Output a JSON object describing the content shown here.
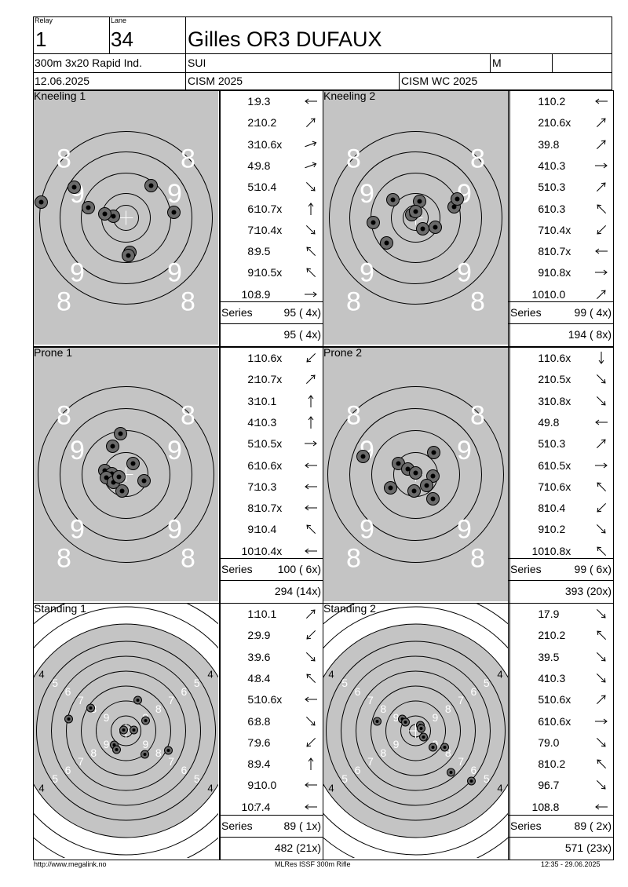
{
  "header": {
    "relay_label": "Relay",
    "relay": "1",
    "lane_label": "Lane",
    "lane": "34",
    "name": "Gilles OR3 DUFAUX",
    "event": "300m 3x20 Rapid Ind.",
    "nation": "SUI",
    "gender": "M",
    "date": "12.06.2025",
    "competition": "CISM 2025",
    "match": "CISM WC 2025"
  },
  "series": [
    {
      "title": "Kneeling 1",
      "target_type": "kneeling",
      "shots": [
        {
          "n": "1:",
          "v": "9.3",
          "dir": "W"
        },
        {
          "n": "2:",
          "v": "10.2",
          "dir": "NE"
        },
        {
          "n": "3:",
          "v": "10.6x",
          "dir": "ENE"
        },
        {
          "n": "4:",
          "v": "9.8",
          "dir": "ENE"
        },
        {
          "n": "5:",
          "v": "10.4",
          "dir": "SE"
        },
        {
          "n": "6:",
          "v": "10.7x",
          "dir": "N"
        },
        {
          "n": "7:",
          "v": "10.4x",
          "dir": "SE"
        },
        {
          "n": "8:",
          "v": "9.5",
          "dir": "NW"
        },
        {
          "n": "9:",
          "v": "10.5x",
          "dir": "NW"
        },
        {
          "n": "10:",
          "v": "8.9",
          "dir": "E"
        }
      ],
      "series_label": "Series",
      "series_total": "95 ( 4x)",
      "running_total": "95 ( 4x)",
      "hits": [
        [
          -108,
          -20
        ],
        [
          -66,
          -39
        ],
        [
          -16,
          -2
        ],
        [
          -48,
          -13
        ],
        [
          -27,
          -5
        ],
        [
          32,
          -41
        ],
        [
          61,
          -7
        ],
        [
          138,
          -2
        ],
        [
          5,
          44
        ],
        [
          3,
          48
        ]
      ]
    },
    {
      "title": "Kneeling 2",
      "target_type": "kneeling",
      "shots": [
        {
          "n": "1:",
          "v": "10.2",
          "dir": "W"
        },
        {
          "n": "2:",
          "v": "10.6x",
          "dir": "NE"
        },
        {
          "n": "3:",
          "v": "9.8",
          "dir": "NE"
        },
        {
          "n": "4:",
          "v": "10.3",
          "dir": "E"
        },
        {
          "n": "5:",
          "v": "10.3",
          "dir": "NE"
        },
        {
          "n": "6:",
          "v": "10.3",
          "dir": "NW"
        },
        {
          "n": "7:",
          "v": "10.4x",
          "dir": "SW"
        },
        {
          "n": "8:",
          "v": "10.7x",
          "dir": "W"
        },
        {
          "n": "9:",
          "v": "10.8x",
          "dir": "E"
        },
        {
          "n": "10:",
          "v": "10.0",
          "dir": "NE"
        }
      ],
      "series_label": "Series",
      "series_total": "99 ( 4x)",
      "running_total": "194 ( 8x)",
      "hits": [
        [
          -54,
          6
        ],
        [
          -29,
          -23
        ],
        [
          -5,
          -4
        ],
        [
          5,
          -21
        ],
        [
          25,
          12
        ],
        [
          -37,
          32
        ],
        [
          9,
          14
        ],
        [
          49,
          -14
        ],
        [
          53,
          -24
        ],
        [
          0,
          -8
        ]
      ]
    },
    {
      "title": "Prone 1",
      "target_type": "prone",
      "shots": [
        {
          "n": "1:",
          "v": "10.6x",
          "dir": "SW"
        },
        {
          "n": "2:",
          "v": "10.7x",
          "dir": "NE"
        },
        {
          "n": "3:",
          "v": "10.1",
          "dir": "N"
        },
        {
          "n": "4:",
          "v": "10.3",
          "dir": "N"
        },
        {
          "n": "5:",
          "v": "10.5x",
          "dir": "E"
        },
        {
          "n": "6:",
          "v": "10.6x",
          "dir": "W"
        },
        {
          "n": "7:",
          "v": "10.3",
          "dir": "W"
        },
        {
          "n": "8:",
          "v": "10.7x",
          "dir": "W"
        },
        {
          "n": "9:",
          "v": "10.4",
          "dir": "NW"
        },
        {
          "n": "10:",
          "v": "10.4x",
          "dir": "W"
        }
      ],
      "series_label": "Series",
      "series_total": "100 ( 6x)",
      "running_total": "294 (14x)",
      "hits": [
        [
          -27,
          -5
        ],
        [
          -17,
          -36
        ],
        [
          -7,
          -52
        ],
        [
          9,
          -14
        ],
        [
          23,
          8
        ],
        [
          -5,
          21
        ],
        [
          -18,
          -1
        ],
        [
          -25,
          4
        ],
        [
          -16,
          10
        ],
        [
          -9,
          3
        ]
      ]
    },
    {
      "title": "Prone 2",
      "target_type": "prone",
      "shots": [
        {
          "n": "1:",
          "v": "10.6x",
          "dir": "S"
        },
        {
          "n": "2:",
          "v": "10.5x",
          "dir": "SE"
        },
        {
          "n": "3:",
          "v": "10.8x",
          "dir": "SE"
        },
        {
          "n": "4:",
          "v": "9.8",
          "dir": "W"
        },
        {
          "n": "5:",
          "v": "10.3",
          "dir": "NE"
        },
        {
          "n": "6:",
          "v": "10.5x",
          "dir": "E"
        },
        {
          "n": "7:",
          "v": "10.6x",
          "dir": "NW"
        },
        {
          "n": "8:",
          "v": "10.4",
          "dir": "SW"
        },
        {
          "n": "9:",
          "v": "10.2",
          "dir": "SE"
        },
        {
          "n": "10:",
          "v": "10.8x",
          "dir": "NW"
        }
      ],
      "series_label": "Series",
      "series_total": "99 ( 6x)",
      "running_total": "393 (20x)",
      "hits": [
        [
          -67,
          -23
        ],
        [
          -22,
          -14
        ],
        [
          -10,
          -7
        ],
        [
          0,
          -2
        ],
        [
          23,
          -28
        ],
        [
          22,
          2
        ],
        [
          14,
          14
        ],
        [
          -2,
          21
        ],
        [
          -32,
          17
        ],
        [
          22,
          31
        ]
      ]
    },
    {
      "title": "Standing 1",
      "target_type": "standing",
      "shots": [
        {
          "n": "1:",
          "v": "10.1",
          "dir": "NE"
        },
        {
          "n": "2:",
          "v": "9.9",
          "dir": "SW"
        },
        {
          "n": "3:",
          "v": "9.6",
          "dir": "SE"
        },
        {
          "n": "4:",
          "v": "8.4",
          "dir": "NW"
        },
        {
          "n": "5:",
          "v": "10.6x",
          "dir": "W"
        },
        {
          "n": "6:",
          "v": "8.8",
          "dir": "SE"
        },
        {
          "n": "7:",
          "v": "9.6",
          "dir": "SW"
        },
        {
          "n": "8:",
          "v": "9.4",
          "dir": "N"
        },
        {
          "n": "9:",
          "v": "10.0",
          "dir": "W"
        },
        {
          "n": "10:",
          "v": "7.4",
          "dir": "W"
        }
      ],
      "series_label": "Series",
      "series_total": "89 ( 1x)",
      "running_total": "482 (21x)",
      "hits": [
        [
          -73,
          -15
        ],
        [
          -45,
          -29
        ],
        [
          15,
          -39
        ],
        [
          25,
          -13
        ],
        [
          -15,
          18
        ],
        [
          -12,
          24
        ],
        [
          24,
          30
        ],
        [
          54,
          25
        ],
        [
          10,
          -1
        ],
        [
          -3,
          -1
        ]
      ]
    },
    {
      "title": "Standing 2",
      "target_type": "standing",
      "shots": [
        {
          "n": "1:",
          "v": "7.9",
          "dir": "SE"
        },
        {
          "n": "2:",
          "v": "10.2",
          "dir": "NW"
        },
        {
          "n": "3:",
          "v": "9.5",
          "dir": "SE"
        },
        {
          "n": "4:",
          "v": "10.3",
          "dir": "SE"
        },
        {
          "n": "5:",
          "v": "10.6x",
          "dir": "NE"
        },
        {
          "n": "6:",
          "v": "10.6x",
          "dir": "E"
        },
        {
          "n": "7:",
          "v": "9.0",
          "dir": "SE"
        },
        {
          "n": "8:",
          "v": "10.2",
          "dir": "NW"
        },
        {
          "n": "9:",
          "v": "6.7",
          "dir": "SE"
        },
        {
          "n": "10:",
          "v": "8.8",
          "dir": "W"
        }
      ],
      "series_label": "Series",
      "series_total": "89 ( 2x)",
      "running_total": "571 (23x)",
      "hits": [
        [
          -49,
          -12
        ],
        [
          -17,
          -15
        ],
        [
          -13,
          -11
        ],
        [
          6,
          -7
        ],
        [
          7,
          -3
        ],
        [
          10,
          8
        ],
        [
          22,
          21
        ],
        [
          37,
          21
        ],
        [
          45,
          53
        ],
        [
          71,
          64
        ]
      ]
    }
  ],
  "target_labels": {
    "kneeling": {
      "outer": "8",
      "inner": "9"
    },
    "prone": {
      "outer": "8",
      "inner": "9"
    },
    "standing": [
      "4",
      "5",
      "6",
      "7",
      "8",
      "9"
    ]
  },
  "footer": {
    "left": "http://www.megalink.no",
    "center": "MLRes ISSF 300m Rifle",
    "right": "12:35 - 29.06.2025"
  }
}
